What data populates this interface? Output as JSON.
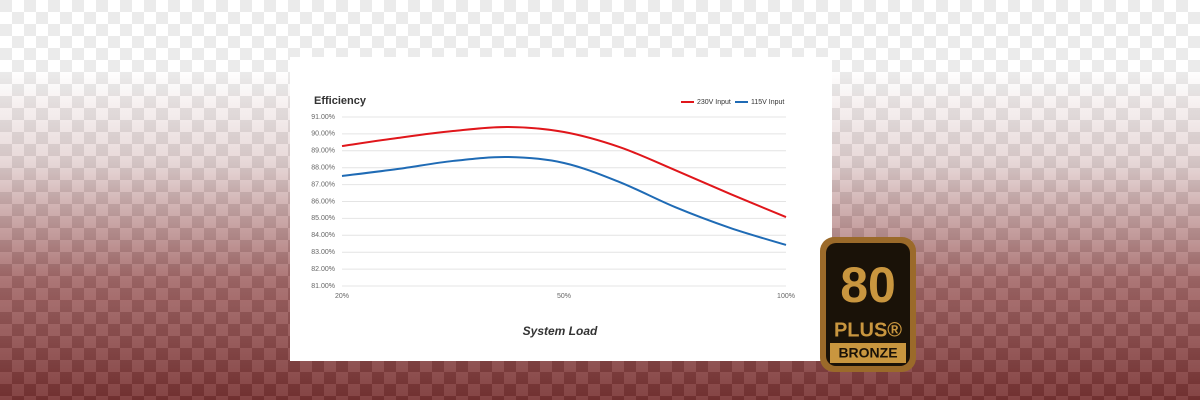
{
  "chart_data": {
    "type": "line",
    "title": "Efficiency",
    "x_label": "System Load",
    "categories": [
      "20%",
      null,
      null,
      null,
      "50%",
      null,
      null,
      null,
      "100%"
    ],
    "series": [
      {
        "name": "230V Input",
        "color": "#e0161b",
        "values": [
          89.28,
          89.76,
          90.17,
          90.41,
          90.11,
          89.22,
          87.86,
          86.44,
          85.08
        ]
      },
      {
        "name": "115V Input",
        "color": "#1f6bb5",
        "values": [
          87.51,
          87.92,
          88.4,
          88.63,
          88.28,
          87.15,
          85.67,
          84.43,
          83.43
        ]
      }
    ],
    "ylim": [
      81,
      91
    ],
    "yticks": [
      {
        "value": 81,
        "label": "81.00%"
      },
      {
        "value": 82,
        "label": "82.00%"
      },
      {
        "value": 83,
        "label": "83.00%"
      },
      {
        "value": 84,
        "label": "84.00%"
      },
      {
        "value": 85,
        "label": "85.00%"
      },
      {
        "value": 86,
        "label": "86.00%"
      },
      {
        "value": 87,
        "label": "87.00%"
      },
      {
        "value": 88,
        "label": "88.00%"
      },
      {
        "value": 89,
        "label": "89.00%"
      },
      {
        "value": 90,
        "label": "90.00%"
      },
      {
        "value": 91,
        "label": "91.00%"
      }
    ],
    "grid": true,
    "legend": "top-right"
  },
  "badge": {
    "number": "80",
    "brand": "PLUS®",
    "tier": "BRONZE"
  }
}
